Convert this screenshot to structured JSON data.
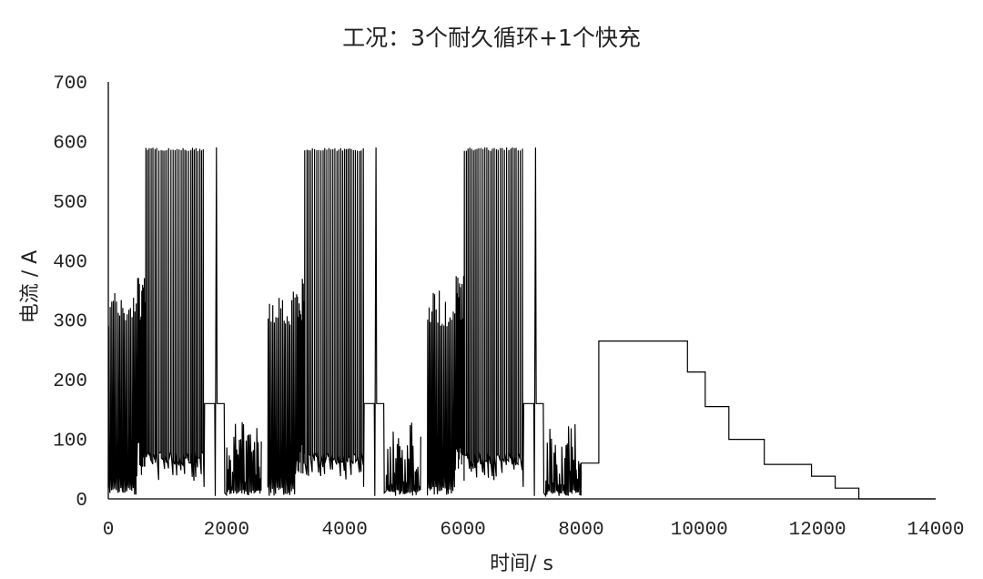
{
  "chart_data": {
    "type": "line",
    "title": "工况：3个耐久循环+1个快充",
    "xlabel": "时间/ s",
    "ylabel": "电流 / A",
    "xlim": [
      0,
      14000
    ],
    "ylim": [
      0,
      700
    ],
    "x_ticks": [
      "0",
      "2000",
      "4000",
      "6000",
      "8000",
      "10000",
      "12000",
      "14000"
    ],
    "y_ticks": [
      "0",
      "100",
      "200",
      "300",
      "400",
      "500",
      "600",
      "700"
    ],
    "grid": false,
    "legend": "none",
    "series": [
      {
        "segment": "durability-cycles",
        "cycle_starts": [
          0,
          2700,
          5400
        ],
        "cycle_duration": 2650,
        "peak_current": 590,
        "high_current": 380,
        "initial_spikes_range": [
          290,
          350
        ],
        "fixed_step_current": 160,
        "tail_current_range": [
          20,
          130
        ]
      },
      {
        "segment": "fast-charge",
        "x": [
          8000,
          8000,
          8300,
          8300,
          9800,
          9800,
          10100,
          10100,
          10500,
          10500,
          11100,
          11100,
          11900,
          11900,
          12300,
          12300,
          12700,
          12700,
          14000
        ],
        "y": [
          20,
          60,
          60,
          265,
          265,
          213,
          213,
          155,
          155,
          100,
          100,
          58,
          58,
          38,
          38,
          18,
          18,
          0,
          0
        ]
      }
    ]
  }
}
